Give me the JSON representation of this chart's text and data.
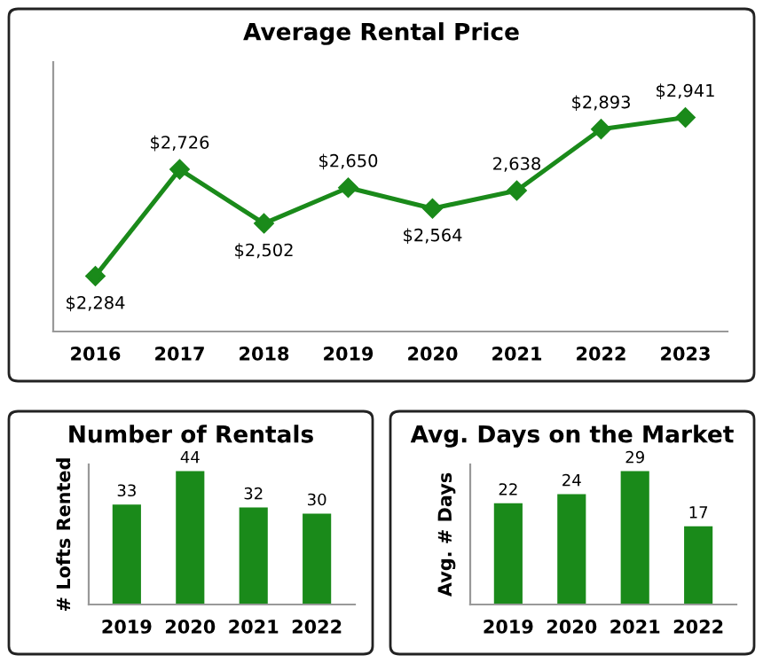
{
  "chart_data": [
    {
      "type": "line",
      "title": "Average Rental Price",
      "categories": [
        "2016",
        "2017",
        "2018",
        "2019",
        "2020",
        "2021",
        "2022",
        "2023"
      ],
      "values": [
        2284,
        2726,
        2502,
        2650,
        2564,
        2638,
        2893,
        2941
      ],
      "value_labels": [
        "$2,284",
        "$2,726",
        "$2,502",
        "$2,650",
        "$2,564",
        "2,638",
        "$2,893",
        "$2,941"
      ],
      "color": "#1a8a1a",
      "marker": "diamond",
      "tick_labels": "x"
    },
    {
      "type": "bar",
      "title": "Number of Rentals",
      "ylabel": "# Lofts Rented",
      "categories": [
        "2019",
        "2020",
        "2021",
        "2022"
      ],
      "values": [
        33,
        44,
        32,
        30
      ],
      "color": "#1a8a1a",
      "data_labels": true,
      "tick_labels": "x"
    },
    {
      "type": "bar",
      "title": "Avg. Days on the Market",
      "ylabel": "Avg. # Days",
      "categories": [
        "2019",
        "2020",
        "2021",
        "2022"
      ],
      "values": [
        22,
        24,
        29,
        17
      ],
      "color": "#1a8a1a",
      "data_labels": true,
      "tick_labels": "x"
    }
  ]
}
